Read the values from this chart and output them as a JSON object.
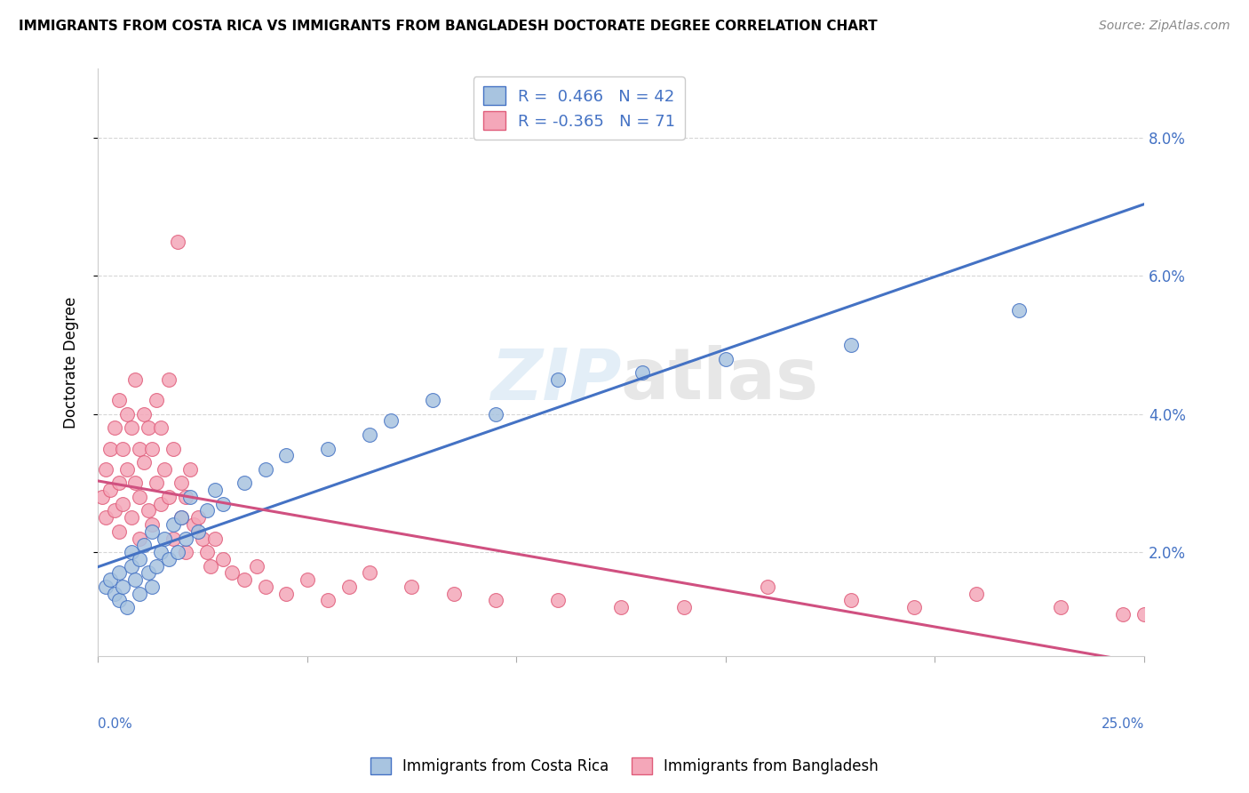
{
  "title": "IMMIGRANTS FROM COSTA RICA VS IMMIGRANTS FROM BANGLADESH DOCTORATE DEGREE CORRELATION CHART",
  "source": "Source: ZipAtlas.com",
  "ylabel": "Doctorate Degree",
  "xlim": [
    0.0,
    25.0
  ],
  "ylim": [
    0.5,
    9.0
  ],
  "y_tick_vals": [
    2.0,
    4.0,
    6.0,
    8.0
  ],
  "y_tick_labels": [
    "2.0%",
    "4.0%",
    "6.0%",
    "8.0%"
  ],
  "x_tick_vals": [
    0.0,
    5.0,
    10.0,
    15.0,
    20.0,
    25.0
  ],
  "legend_r1": "R =  0.466",
  "legend_n1": "N = 42",
  "legend_r2": "R = -0.365",
  "legend_n2": "N = 71",
  "color_blue": "#a8c4e0",
  "color_pink": "#f4a7b9",
  "color_blue_dark": "#4472c4",
  "color_pink_dark": "#e05c7a",
  "color_line_blue": "#4472c4",
  "color_line_pink": "#d05080",
  "watermark": "ZIPatlas",
  "costa_rica_x": [
    0.2,
    0.3,
    0.4,
    0.5,
    0.5,
    0.6,
    0.7,
    0.8,
    0.8,
    0.9,
    1.0,
    1.0,
    1.1,
    1.2,
    1.3,
    1.3,
    1.4,
    1.5,
    1.6,
    1.7,
    1.8,
    1.9,
    2.0,
    2.1,
    2.2,
    2.4,
    2.6,
    2.8,
    3.0,
    3.5,
    4.0,
    4.5,
    5.5,
    6.5,
    7.0,
    8.0,
    9.5,
    11.0,
    13.0,
    15.0,
    18.0,
    22.0
  ],
  "costa_rica_y": [
    1.5,
    1.6,
    1.4,
    1.7,
    1.3,
    1.5,
    1.2,
    1.8,
    2.0,
    1.6,
    1.4,
    1.9,
    2.1,
    1.7,
    2.3,
    1.5,
    1.8,
    2.0,
    2.2,
    1.9,
    2.4,
    2.0,
    2.5,
    2.2,
    2.8,
    2.3,
    2.6,
    2.9,
    2.7,
    3.0,
    3.2,
    3.4,
    3.5,
    3.7,
    3.9,
    4.2,
    4.0,
    4.5,
    4.6,
    4.8,
    5.0,
    5.5
  ],
  "bangladesh_x": [
    0.1,
    0.2,
    0.2,
    0.3,
    0.3,
    0.4,
    0.4,
    0.5,
    0.5,
    0.5,
    0.6,
    0.6,
    0.7,
    0.7,
    0.8,
    0.8,
    0.9,
    0.9,
    1.0,
    1.0,
    1.0,
    1.1,
    1.1,
    1.2,
    1.2,
    1.3,
    1.3,
    1.4,
    1.4,
    1.5,
    1.5,
    1.6,
    1.7,
    1.7,
    1.8,
    1.8,
    1.9,
    2.0,
    2.0,
    2.1,
    2.1,
    2.2,
    2.3,
    2.4,
    2.5,
    2.6,
    2.7,
    2.8,
    3.0,
    3.2,
    3.5,
    3.8,
    4.0,
    4.5,
    5.0,
    5.5,
    6.0,
    6.5,
    7.5,
    8.5,
    9.5,
    11.0,
    12.5,
    14.0,
    16.0,
    18.0,
    19.5,
    21.0,
    23.0,
    24.5,
    25.0
  ],
  "bangladesh_y": [
    2.8,
    3.2,
    2.5,
    3.5,
    2.9,
    3.8,
    2.6,
    4.2,
    3.0,
    2.3,
    3.5,
    2.7,
    4.0,
    3.2,
    3.8,
    2.5,
    4.5,
    3.0,
    3.5,
    2.8,
    2.2,
    4.0,
    3.3,
    3.8,
    2.6,
    3.5,
    2.4,
    4.2,
    3.0,
    3.8,
    2.7,
    3.2,
    4.5,
    2.8,
    3.5,
    2.2,
    6.5,
    3.0,
    2.5,
    2.8,
    2.0,
    3.2,
    2.4,
    2.5,
    2.2,
    2.0,
    1.8,
    2.2,
    1.9,
    1.7,
    1.6,
    1.8,
    1.5,
    1.4,
    1.6,
    1.3,
    1.5,
    1.7,
    1.5,
    1.4,
    1.3,
    1.3,
    1.2,
    1.2,
    1.5,
    1.3,
    1.2,
    1.4,
    1.2,
    1.1,
    1.1
  ]
}
